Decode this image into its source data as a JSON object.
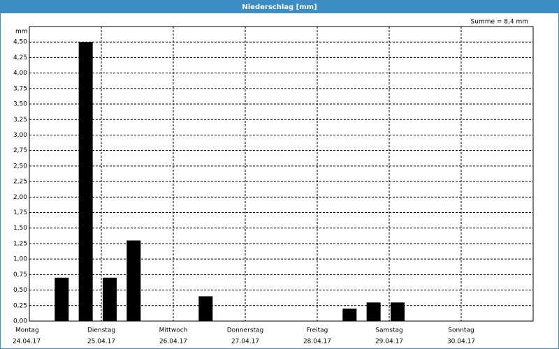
{
  "window_title": "Niederschlag [mm]",
  "summary": "Summe = 8,4 mm",
  "chart_data": {
    "type": "bar",
    "ylabel": "mm",
    "color": "#000000",
    "ylim": [
      0,
      4.75
    ],
    "yticks": [
      {
        "value": 0,
        "label": "0,00"
      },
      {
        "value": 0.25,
        "label": "0,25"
      },
      {
        "value": 0.5,
        "label": "0,50"
      },
      {
        "value": 0.75,
        "label": "0,75"
      },
      {
        "value": 1,
        "label": "1,00"
      },
      {
        "value": 1.25,
        "label": "1,25"
      },
      {
        "value": 1.5,
        "label": "1,50"
      },
      {
        "value": 1.75,
        "label": "1,75"
      },
      {
        "value": 2,
        "label": "2,00"
      },
      {
        "value": 2.25,
        "label": "2,25"
      },
      {
        "value": 2.5,
        "label": "2,50"
      },
      {
        "value": 2.75,
        "label": "2,75"
      },
      {
        "value": 3,
        "label": "3,00"
      },
      {
        "value": 3.25,
        "label": "3,25"
      },
      {
        "value": 3.5,
        "label": "3,50"
      },
      {
        "value": 3.75,
        "label": "3,75"
      },
      {
        "value": 4,
        "label": "4,00"
      },
      {
        "value": 4.25,
        "label": "4,25"
      },
      {
        "value": 4.5,
        "label": "4,50"
      }
    ],
    "days": [
      {
        "name": "Montag",
        "date": "24.04.17"
      },
      {
        "name": "Dienstag",
        "date": "25.04.17"
      },
      {
        "name": "Mittwoch",
        "date": "26.04.17"
      },
      {
        "name": "Donnerstag",
        "date": "27.04.17"
      },
      {
        "name": "Freitag",
        "date": "28.04.17"
      },
      {
        "name": "Samstag",
        "date": "29.04.17"
      },
      {
        "name": "Sonntag",
        "date": "30.04.17"
      }
    ],
    "values": [
      0,
      0.7,
      4.5,
      0.7,
      1.3,
      0,
      0,
      0.4,
      0,
      0,
      0,
      0,
      0,
      0.2,
      0.3,
      0.3,
      0,
      0,
      0,
      0,
      0
    ],
    "grid": true
  }
}
